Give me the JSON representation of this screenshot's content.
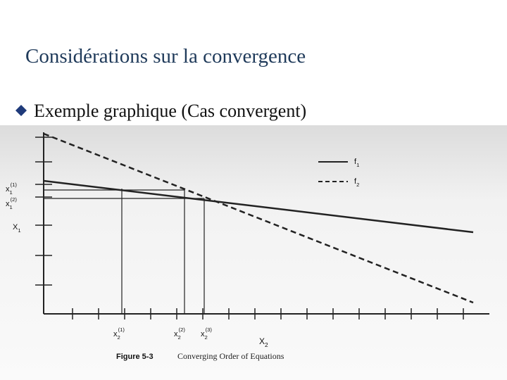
{
  "slide": {
    "title": "Considérations sur la convergence",
    "bullet": "Exemple graphique (Cas convergent)"
  },
  "figure": {
    "y_labels": [
      {
        "base": "x",
        "sub": "1",
        "sup": "(1)"
      },
      {
        "base": "x",
        "sub": "1",
        "sup": "(2)"
      },
      {
        "base": "X",
        "sub": "1"
      }
    ],
    "x_labels": [
      {
        "base": "x",
        "sub": "2",
        "sup": "(1)"
      },
      {
        "base": "x",
        "sub": "2",
        "sup": "(2)"
      },
      {
        "base": "x",
        "sub": "2",
        "sup": "(3)"
      }
    ],
    "x_axis_label": {
      "base": "X",
      "sub": "2"
    },
    "legend": [
      {
        "base": "f",
        "sub": "1"
      },
      {
        "base": "f",
        "sub": "2"
      }
    ],
    "caption": {
      "number": "Figure 5-3",
      "text": "Converging Order of Equations"
    }
  }
}
